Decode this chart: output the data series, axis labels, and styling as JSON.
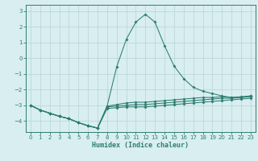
{
  "xlabel": "Humidex (Indice chaleur)",
  "x": [
    0,
    1,
    2,
    3,
    4,
    5,
    6,
    7,
    8,
    9,
    10,
    11,
    12,
    13,
    14,
    15,
    16,
    17,
    18,
    19,
    20,
    21,
    22,
    23
  ],
  "y_main": [
    -3.0,
    -3.3,
    -3.5,
    -3.7,
    -3.85,
    -4.1,
    -4.3,
    -4.45,
    -3.05,
    -0.55,
    1.2,
    2.3,
    2.8,
    2.3,
    0.8,
    -0.5,
    -1.3,
    -1.85,
    -2.1,
    -2.25,
    -2.4,
    -2.5,
    -2.5,
    -2.4
  ],
  "y_flat1": [
    -3.0,
    -3.3,
    -3.5,
    -3.7,
    -3.85,
    -4.1,
    -4.3,
    -4.45,
    -3.05,
    -2.95,
    -2.85,
    -2.8,
    -2.8,
    -2.75,
    -2.7,
    -2.65,
    -2.6,
    -2.55,
    -2.5,
    -2.5,
    -2.45,
    -2.5,
    -2.45,
    -2.4
  ],
  "y_flat2": [
    -3.0,
    -3.3,
    -3.5,
    -3.7,
    -3.85,
    -4.1,
    -4.3,
    -4.45,
    -3.1,
    -3.05,
    -3.0,
    -2.95,
    -2.95,
    -2.9,
    -2.85,
    -2.8,
    -2.75,
    -2.7,
    -2.65,
    -2.6,
    -2.55,
    -2.55,
    -2.5,
    -2.45
  ],
  "y_flat3": [
    -3.0,
    -3.3,
    -3.5,
    -3.7,
    -3.85,
    -4.1,
    -4.3,
    -4.45,
    -3.2,
    -3.15,
    -3.1,
    -3.1,
    -3.1,
    -3.05,
    -3.0,
    -2.95,
    -2.9,
    -2.85,
    -2.8,
    -2.75,
    -2.7,
    -2.65,
    -2.6,
    -2.55
  ],
  "color": "#2e7d72",
  "bg_color": "#d8eef0",
  "grid_color": "#b8d4d4",
  "ylim": [
    -4.7,
    3.4
  ],
  "xlim": [
    -0.5,
    23.5
  ],
  "yticks": [
    -4,
    -3,
    -2,
    -1,
    0,
    1,
    2,
    3
  ]
}
